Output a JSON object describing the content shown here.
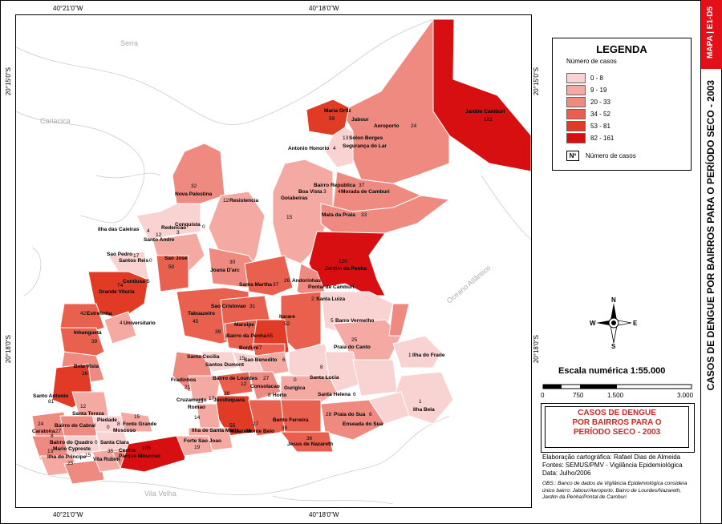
{
  "map_id": "MAPA | E1-D5",
  "side_title": "CASOS DE DENGUE POR BAIRROS  PARA O PERÍODO SECO - 2003",
  "coords": {
    "top_left": "40°21'0\"W",
    "top_right": "40°18'0\"W",
    "bottom_left": "40°21'0\"W",
    "bottom_right": "40°18'0\"W",
    "left_top": "20°15'0\"S",
    "left_bottom": "20°18'0\"S",
    "right_top": "20°15'0\"S",
    "right_bottom": "20°18'0\"S"
  },
  "place_labels": {
    "serra": "Serra",
    "cariacica": "Cariacica",
    "vila_velha": "Vila Velha",
    "ocean": "Oceano Atlântico"
  },
  "legend": {
    "title": "LEGENDA",
    "subtitle": "Número de casos",
    "classes": [
      {
        "label": "0 - 8",
        "color": "#f9d2d2"
      },
      {
        "label": "9 - 19",
        "color": "#f4a9a2"
      },
      {
        "label": "20 - 33",
        "color": "#ef8a80"
      },
      {
        "label": "34 - 52",
        "color": "#e9604f"
      },
      {
        "label": "53 - 81",
        "color": "#e13b26"
      },
      {
        "label": "82 - 161",
        "color": "#d80f10"
      }
    ],
    "symbol_label": "Nº",
    "symbol_text": "Número de casos"
  },
  "compass": {
    "n": "N",
    "s": "S",
    "e": "E",
    "w": "W"
  },
  "scale": {
    "title": "Escala numérica   1:55.000",
    "ticks": [
      "0",
      "750",
      "1.500",
      "3.000"
    ]
  },
  "title_box": [
    "CASOS DE DENGUE",
    "POR BAIRROS PARA O",
    "PERÍODO SECO - 2003"
  ],
  "credits": [
    "Elaboração cartográfica: Rafael Dias de Almeida",
    "Fontes: SEMUS/PMV - Vigilância Epidemiológica",
    "Data: Julho/2006"
  ],
  "obs": "OBS.: Banco de dados da Vigilância Epidemiológica considera único bairro: Jabour/Aeroporto, Bairro de Lourdes/Nazareth, Jardim da Penha/Pontal de Camburi",
  "neighborhoods": [
    {
      "name": "Maria Ortiz",
      "cases": "59"
    },
    {
      "name": "Jabour",
      "cases": ""
    },
    {
      "name": "Aeroporto",
      "cases": "24"
    },
    {
      "name": "Jardim Camburi",
      "cases": "161"
    },
    {
      "name": "Solon Borges",
      "cases": "13"
    },
    {
      "name": "Antonio Honorio",
      "cases": "4"
    },
    {
      "name": "Segurança do Lar",
      "cases": "0"
    },
    {
      "name": "Bairro Republica",
      "cases": "37"
    },
    {
      "name": "Boa Vista",
      "cases": "3"
    },
    {
      "name": "Morada de Camburi",
      "cases": "4"
    },
    {
      "name": "Goiabeiras",
      "cases": "15"
    },
    {
      "name": "Mata da Praia",
      "cases": "33"
    },
    {
      "name": "Jardim da Penha",
      "cases": "120"
    },
    {
      "name": "Andorinhas",
      "cases": "26"
    },
    {
      "name": "Pontal de Camburi",
      "cases": ""
    },
    {
      "name": "Santa Luiza",
      "cases": "2"
    },
    {
      "name": "Nova Palestina",
      "cases": "32"
    },
    {
      "name": "Resistencia",
      "cases": "12"
    },
    {
      "name": "Conquista",
      "cases": "0"
    },
    {
      "name": "Redencao",
      "cases": "3"
    },
    {
      "name": "Ilha das Caieiras",
      "cases": "4"
    },
    {
      "name": "Santo Andre",
      "cases": "12"
    },
    {
      "name": "Sao Pedro",
      "cases": "17"
    },
    {
      "name": "Santos Reis",
      "cases": "0"
    },
    {
      "name": "Sao Jose",
      "cases": "50"
    },
    {
      "name": "Joana D'arc",
      "cases": "30"
    },
    {
      "name": "Santa Martha",
      "cases": "37"
    },
    {
      "name": "Condusa",
      "cases": "5"
    },
    {
      "name": "Grande Vitoria",
      "cases": "74"
    },
    {
      "name": "Estrelinha",
      "cases": "42"
    },
    {
      "name": "Universitario",
      "cases": "4"
    },
    {
      "name": "Inhanguetá",
      "cases": "39"
    },
    {
      "name": "Sao Cristovao",
      "cases": "31"
    },
    {
      "name": "Tabuazeiro",
      "cases": "45"
    },
    {
      "name": "Itarare",
      "cases": "52"
    },
    {
      "name": "Maruipe",
      "cases": "39"
    },
    {
      "name": "Bairro da Penha",
      "cases": "65"
    },
    {
      "name": "Bonfim",
      "cases": "47"
    },
    {
      "name": "Barro Vermelho",
      "cases": "5"
    },
    {
      "name": "Praia do Canto",
      "cases": "25"
    },
    {
      "name": "Ilha do Frade",
      "cases": "1"
    },
    {
      "name": "Bela Vista",
      "cases": "26"
    },
    {
      "name": "Santa Cecilia",
      "cases": "15"
    },
    {
      "name": "Sao Benedito",
      "cases": "6"
    },
    {
      "name": "Santos Dumont",
      "cases": ""
    },
    {
      "name": "Fradinhos",
      "cases": "21"
    },
    {
      "name": "Bairro de Lourdes",
      "cases": "12"
    },
    {
      "name": "Consolacao",
      "cases": "27"
    },
    {
      "name": "Santa Lucia",
      "cases": "8"
    },
    {
      "name": "Gurigica",
      "cases": "0"
    },
    {
      "name": "Horto",
      "cases": "8"
    },
    {
      "name": "Santa Helena",
      "cases": "6"
    },
    {
      "name": "Ilha Bela",
      "cases": "1"
    },
    {
      "name": "Santo Antonio",
      "cases": "81"
    },
    {
      "name": "Santa Tereza",
      "cases": "12"
    },
    {
      "name": "Cruzamento",
      "cases": "17"
    },
    {
      "name": "Romao",
      "cases": "15"
    },
    {
      "name": "Jucutuquara",
      "cases": "38"
    },
    {
      "name": "Nazareth",
      "cases": "55"
    },
    {
      "name": "Bento Ferreira",
      "cases": "38"
    },
    {
      "name": "Praia do Sua",
      "cases": "28"
    },
    {
      "name": "Enseada do Sua",
      "cases": "6"
    },
    {
      "name": "Caratoira",
      "cases": "24"
    },
    {
      "name": "Bairro do Cabral",
      "cases": "27"
    },
    {
      "name": "Piedade",
      "cases": "8"
    },
    {
      "name": "Fonte Grande",
      "cases": "15"
    },
    {
      "name": "Moscoso",
      "cases": "0"
    },
    {
      "name": "Bairro do Quadro",
      "cases": "8"
    },
    {
      "name": "Santa Clara",
      "cases": "0"
    },
    {
      "name": "Mario Cypreste",
      "cases": "13"
    },
    {
      "name": "Ilha do Principe",
      "cases": "25"
    },
    {
      "name": "Vila Rubim",
      "cases": "15"
    },
    {
      "name": "Centro",
      "cases": "35"
    },
    {
      "name": "Parque Moscoso",
      "cases": "105"
    },
    {
      "name": "Forte Sao Joao",
      "cases": "19"
    },
    {
      "name": "Ilha de Santa Maria",
      "cases": "14"
    },
    {
      "name": "Monte Belo",
      "cases": "27"
    },
    {
      "name": "Jesus de Nazareth",
      "cases": "36"
    }
  ]
}
